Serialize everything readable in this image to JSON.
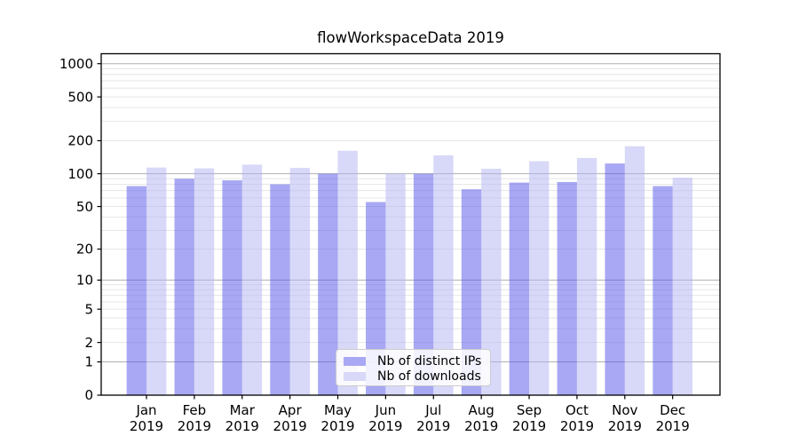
{
  "chart_data": {
    "type": "bar",
    "title": "flowWorkspaceData 2019",
    "yscale": "symlog (position = log10(value + 1))",
    "categories": [
      "Jan",
      "Feb",
      "Mar",
      "Apr",
      "May",
      "Jun",
      "Jul",
      "Aug",
      "Sep",
      "Oct",
      "Nov",
      "Dec"
    ],
    "xtick_year_line": "2019",
    "series": [
      {
        "name": "Nb of distinct IPs",
        "color": "#a8a8f4",
        "values": [
          77,
          90,
          87,
          80,
          100,
          55,
          100,
          72,
          83,
          84,
          124,
          77
        ]
      },
      {
        "name": "Nb of downloads",
        "color": "#d8d8f8",
        "values": [
          114,
          112,
          121,
          113,
          162,
          100,
          147,
          111,
          130,
          139,
          178,
          92
        ]
      }
    ],
    "yticks": [
      0,
      1,
      2,
      5,
      10,
      20,
      50,
      100,
      200,
      500,
      1000
    ],
    "ylim": [
      0,
      1230
    ],
    "grid": {
      "enabled": true,
      "major_at": [
        1,
        10,
        100,
        1000
      ],
      "major_color": "#b0b0b0",
      "minor_color": "#e6e6e6"
    },
    "legend": {
      "position": "lower center"
    },
    "axis_color": "#000000",
    "text_color": "#000000",
    "background": "#ffffff"
  }
}
